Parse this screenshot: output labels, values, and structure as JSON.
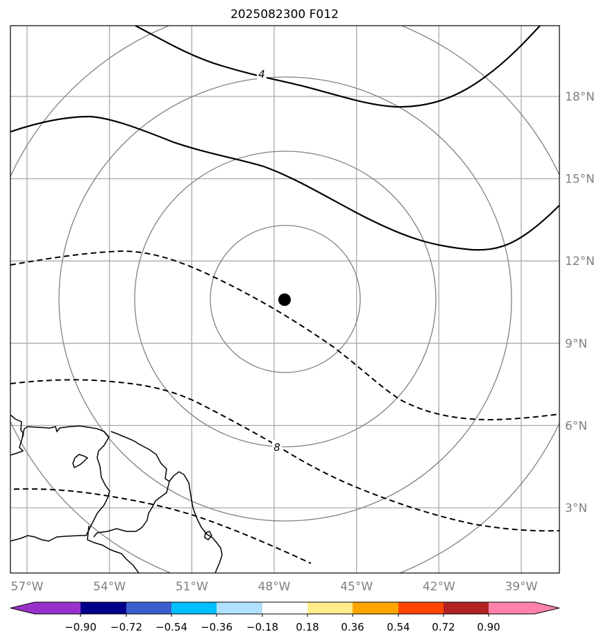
{
  "title": "2025082300 F012",
  "map": {
    "lon_range": [
      -58,
      -38
    ],
    "lat_range": [
      1,
      20
    ],
    "lat_ticks": [
      {
        "value": 18,
        "label": "18°N"
      },
      {
        "value": 15,
        "label": "15°N"
      },
      {
        "value": 12,
        "label": "12°N"
      },
      {
        "value": 9,
        "label": "9°N"
      },
      {
        "value": 6,
        "label": "6°N"
      },
      {
        "value": 3,
        "label": "3°N"
      }
    ],
    "lon_ticks": [
      {
        "value": -57,
        "label": "57°W"
      },
      {
        "value": -54,
        "label": "54°W"
      },
      {
        "value": -51,
        "label": "51°W"
      },
      {
        "value": -48,
        "label": "48°W"
      },
      {
        "value": -45,
        "label": "45°W"
      },
      {
        "value": -42,
        "label": "42°W"
      },
      {
        "value": -39,
        "label": "39°W"
      }
    ],
    "storm_center": {
      "lon": -48,
      "lat": 10.6
    },
    "range_rings_center": {
      "lon": -47.9,
      "lat": 10.3
    },
    "grid_color": "#aaaaaa",
    "ring_color": "#808080",
    "contour_color": "#000000",
    "contour_labels": [
      {
        "text": "4",
        "lon": -48.6,
        "lat": 18.8
      },
      {
        "text": "8",
        "lon": -47.9,
        "lat": 5.3
      }
    ]
  },
  "colorbar": {
    "colors": [
      "#9932cc",
      "#00008b",
      "#3a5fcd",
      "#00bfff",
      "#b0e2ff",
      "#ffffff",
      "#ffec8b",
      "#ffa500",
      "#ff4500",
      "#b22222",
      "#ff82ab"
    ],
    "labels": [
      "−0.90",
      "−0.72",
      "−0.54",
      "−0.36",
      "−0.18",
      "0.18",
      "0.36",
      "0.54",
      "0.72",
      "0.90"
    ]
  }
}
